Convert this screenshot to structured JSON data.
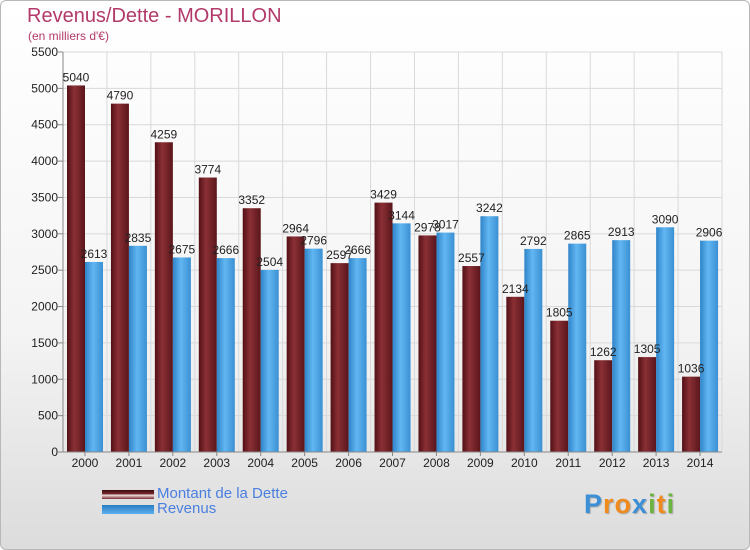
{
  "chart_data": {
    "type": "bar",
    "title": "Revenus/Dette - MORILLON",
    "subtitle": "(en milliers d'€)",
    "categories": [
      "2000",
      "2001",
      "2002",
      "2003",
      "2004",
      "2005",
      "2006",
      "2007",
      "2008",
      "2009",
      "2010",
      "2011",
      "2012",
      "2013",
      "2014"
    ],
    "series": [
      {
        "name": "Montant de la Dette",
        "color": "#7a2a2e",
        "values": [
          5040,
          4790,
          4259,
          3774,
          3352,
          2964,
          2597,
          3429,
          2978,
          2557,
          2134,
          1805,
          1262,
          1305,
          1036
        ],
        "labels": [
          "5040",
          "4790",
          "4259",
          "3774",
          "3352",
          "2964",
          "2597",
          "3429",
          "2978",
          "2557",
          "2134",
          "1805",
          "1262",
          "1305",
          "1036"
        ]
      },
      {
        "name": "Revenus",
        "color": "#4aa3e4",
        "values": [
          2613,
          2835,
          2675,
          2666,
          2504,
          2796,
          2666,
          3144,
          3017,
          3242,
          2792,
          2865,
          2913,
          3090,
          2906
        ],
        "labels": [
          "2613",
          "2835",
          "2675",
          "2666",
          "2504",
          "2796",
          "2666",
          "3144",
          "3017",
          "3242",
          "2792",
          "2865",
          "2913",
          "3090",
          "2906"
        ]
      }
    ],
    "ylim": [
      0,
      5500
    ],
    "yticks": [
      0,
      500,
      1000,
      1500,
      2000,
      2500,
      3000,
      3500,
      4000,
      4500,
      5000,
      5500
    ],
    "ytick_labels": [
      "0",
      "500",
      "1000",
      "1500",
      "2000",
      "2500",
      "3000",
      "3500",
      "4000",
      "4500",
      "5000",
      "5500"
    ],
    "xlabel": "",
    "ylabel": "",
    "grid": true,
    "legend_position": "bottom-left"
  },
  "logo": {
    "text": "Proxiti",
    "letters": [
      "P",
      "r",
      "o",
      "x",
      "i",
      "t",
      "i"
    ],
    "colors": [
      "#3b8fd6",
      "#f08a1c",
      "#f08a1c",
      "#3b8fd6",
      "#6cb33f",
      "#f08a1c",
      "#6cb33f"
    ]
  }
}
